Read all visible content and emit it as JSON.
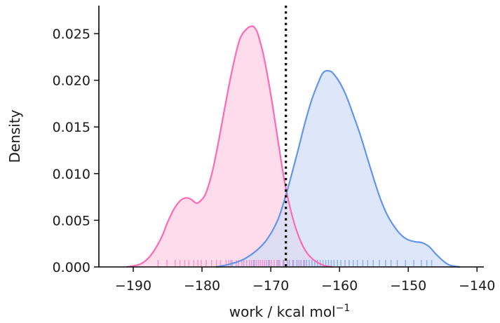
{
  "chart_data": {
    "type": "area",
    "xlabel": "work / kcal mol",
    "xlabel_superscript": "−1",
    "ylabel": "Density",
    "xlim": [
      -195,
      -139
    ],
    "ylim": [
      0,
      0.028
    ],
    "x_ticks": [
      -190,
      -180,
      -170,
      -160,
      -150,
      -140
    ],
    "x_tick_labels": [
      "−190",
      "−180",
      "−170",
      "−160",
      "−150",
      "−140"
    ],
    "y_ticks": [
      0,
      0.005,
      0.01,
      0.015,
      0.02,
      0.025
    ],
    "y_tick_labels": [
      "0.000",
      "0.005",
      "0.010",
      "0.015",
      "0.020",
      "0.025"
    ],
    "grid": false,
    "reference_line": {
      "x": -167.8,
      "style": "dotted",
      "color": "#000000"
    },
    "series": [
      {
        "color": "#ff69b4",
        "fill": "#ffd0e6",
        "x": [
          -191,
          -189,
          -187.5,
          -186,
          -185,
          -184,
          -183,
          -182.2,
          -181.5,
          -181,
          -180.5,
          -179.5,
          -178.5,
          -177.5,
          -176.5,
          -175.5,
          -174.5,
          -173.5,
          -172.8,
          -172.3,
          -171.8,
          -171,
          -170,
          -169,
          -168,
          -167,
          -166,
          -165,
          -164,
          -163,
          -162,
          -161
        ],
        "y": [
          0,
          0.0003,
          0.0012,
          0.003,
          0.0048,
          0.0063,
          0.0072,
          0.0074,
          0.0072,
          0.0069,
          0.0069,
          0.0078,
          0.0102,
          0.0138,
          0.0178,
          0.0215,
          0.0244,
          0.0255,
          0.0258,
          0.0256,
          0.0248,
          0.0225,
          0.0185,
          0.0138,
          0.0092,
          0.0058,
          0.0034,
          0.0018,
          0.0009,
          0.0004,
          0.0001,
          0
        ],
        "rug_x": [
          -186.4,
          -185.1,
          -183.9,
          -183.2,
          -182.5,
          -181.9,
          -181.2,
          -180.6,
          -180.1,
          -179.4,
          -178.6,
          -177.9,
          -177.3,
          -176.5,
          -176.1,
          -175.6,
          -175.0,
          -174.7,
          -174.2,
          -173.9,
          -173.5,
          -173.1,
          -172.8,
          -172.5,
          -172.1,
          -171.8,
          -171.5,
          -171.2,
          -170.9,
          -170.6,
          -170.2,
          -169.9,
          -169.5,
          -169.1,
          -168.7,
          -168.2,
          -167.6,
          -166.8,
          -165.9,
          -165.1
        ]
      },
      {
        "color": "#6495ed",
        "fill": "#d3def7",
        "x": [
          -178,
          -176,
          -174,
          -172,
          -170.5,
          -169,
          -168,
          -167,
          -166,
          -165,
          -164,
          -163,
          -162.5,
          -162,
          -161.5,
          -161,
          -160,
          -159,
          -158,
          -157,
          -156,
          -155,
          -154,
          -153,
          -152,
          -151,
          -150,
          -149,
          -148,
          -147,
          -146,
          -145,
          -144,
          -142.5
        ],
        "y": [
          0,
          0.0003,
          0.0008,
          0.0018,
          0.003,
          0.005,
          0.0072,
          0.0098,
          0.0126,
          0.0155,
          0.018,
          0.0199,
          0.0207,
          0.021,
          0.021,
          0.0208,
          0.0198,
          0.0183,
          0.0163,
          0.0142,
          0.0118,
          0.0094,
          0.0072,
          0.0055,
          0.0043,
          0.0034,
          0.0029,
          0.0027,
          0.0026,
          0.0022,
          0.0014,
          0.0007,
          0.0002,
          0
        ]
      }
    ],
    "rug_blue_x": [
      -175.8,
      -172.4,
      -170.3,
      -168.9,
      -168.1,
      -167.3,
      -166.7,
      -166.2,
      -165.6,
      -165.2,
      -164.8,
      -164.4,
      -164.0,
      -163.6,
      -163.2,
      -162.8,
      -162.4,
      -162.0,
      -161.6,
      -161.2,
      -160.8,
      -160.3,
      -159.8,
      -159.2,
      -158.6,
      -158.0,
      -157.4,
      -156.6,
      -155.9,
      -155.1,
      -154.2,
      -153.3,
      -152.5,
      -151.6,
      -150.4,
      -149.2,
      -148.1,
      -147.3,
      -146.6
    ]
  }
}
